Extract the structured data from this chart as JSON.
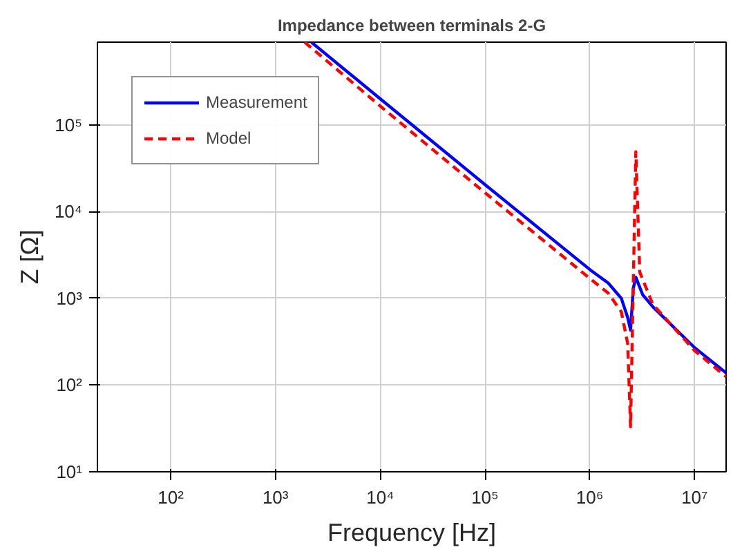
{
  "chart_data": {
    "type": "line",
    "title": "Impedance between terminals 2-G",
    "xlabel": "Frequency [Hz]",
    "ylabel": "Z [Ω]",
    "log": "xy",
    "grid": true,
    "legend": "top left",
    "xlim": [
      20,
      20000000
    ],
    "ylim": [
      10,
      900000
    ],
    "xticks": [
      {
        "value": 100,
        "label": "10²"
      },
      {
        "value": 1000,
        "label": "10³"
      },
      {
        "value": 10000,
        "label": "10⁴"
      },
      {
        "value": 100000,
        "label": "10⁵"
      },
      {
        "value": 1000000,
        "label": "10⁶"
      },
      {
        "value": 10000000,
        "label": "10⁷"
      }
    ],
    "yticks": [
      {
        "value": 10,
        "label": "10¹"
      },
      {
        "value": 100,
        "label": "10²"
      },
      {
        "value": 1000,
        "label": "10³"
      },
      {
        "value": 10000,
        "label": "10⁴"
      },
      {
        "value": 100000,
        "label": "10⁵"
      }
    ],
    "series": [
      {
        "name": "Measurement",
        "color": "#0000ff",
        "line_style": "solid",
        "x": [
          2200,
          10000,
          100000,
          1000000,
          1500000,
          2000000,
          2300000,
          2450000,
          2600000,
          2750000,
          3200000,
          4000000,
          10000000,
          20000000
        ],
        "values": [
          900000,
          200000,
          20500,
          2150,
          1500,
          1000,
          600,
          430,
          1300,
          1750,
          1100,
          800,
          270,
          138
        ]
      },
      {
        "name": "Model",
        "color": "#ff0000",
        "line_style": "dashed",
        "x": [
          1900,
          10000,
          100000,
          1000000,
          1500000,
          2000000,
          2300000,
          2450000,
          2750000,
          3000000,
          4000000,
          10000000,
          20000000
        ],
        "values": [
          900000,
          165000,
          16500,
          1700,
          1150,
          700,
          300,
          33,
          49000,
          2000,
          850,
          250,
          125
        ]
      }
    ]
  }
}
